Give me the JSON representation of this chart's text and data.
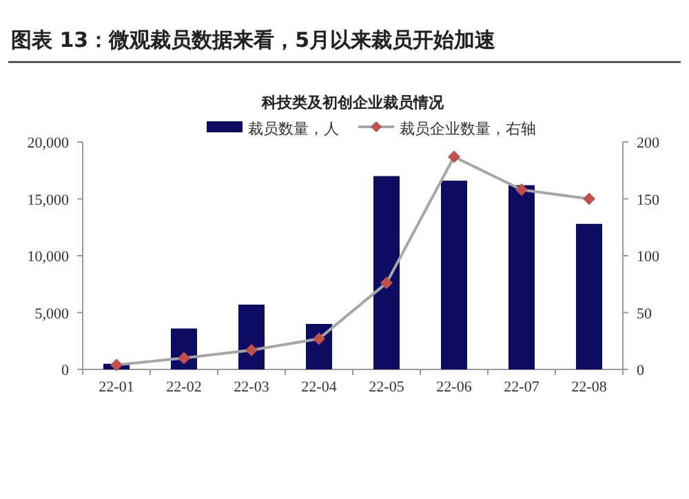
{
  "chart_data": {
    "type": "bar",
    "title": "图表 13：微观裁员数据来看，5月以来裁员开始加速",
    "subtitle": "科技类及初创企业裁员情况",
    "categories": [
      "22-01",
      "22-02",
      "22-03",
      "22-04",
      "22-05",
      "22-06",
      "22-07",
      "22-08"
    ],
    "series": [
      {
        "name": "裁员数量，人",
        "color": "#0c0c63",
        "values": [
          500,
          3600,
          5700,
          4000,
          17000,
          16600,
          16200,
          12800
        ]
      },
      {
        "name": "裁员企业数量，右轴",
        "type": "line",
        "axis": "y2",
        "color": "#a6a6a6",
        "colors": [
          "#c0504d",
          "#c0504d",
          "#c0504d",
          "#c0504d",
          "#c0504d",
          "#c0504d",
          "#c0504d",
          "#c0504d"
        ],
        "marker": "diamond",
        "values": [
          4,
          10,
          17,
          27,
          76,
          187,
          158,
          150
        ]
      }
    ],
    "ylim": [
      0,
      20000
    ],
    "yticks": [
      {
        "value": 0,
        "label": "0"
      },
      {
        "value": 5000,
        "label": "5,000"
      },
      {
        "value": 10000,
        "label": "10,000"
      },
      {
        "value": 15000,
        "label": "15,000"
      },
      {
        "value": 20000,
        "label": "20,000"
      }
    ],
    "y2lim": [
      0,
      200
    ],
    "y2ticks": [
      0,
      50,
      100,
      150,
      200
    ],
    "legend": "top",
    "grid": false
  }
}
